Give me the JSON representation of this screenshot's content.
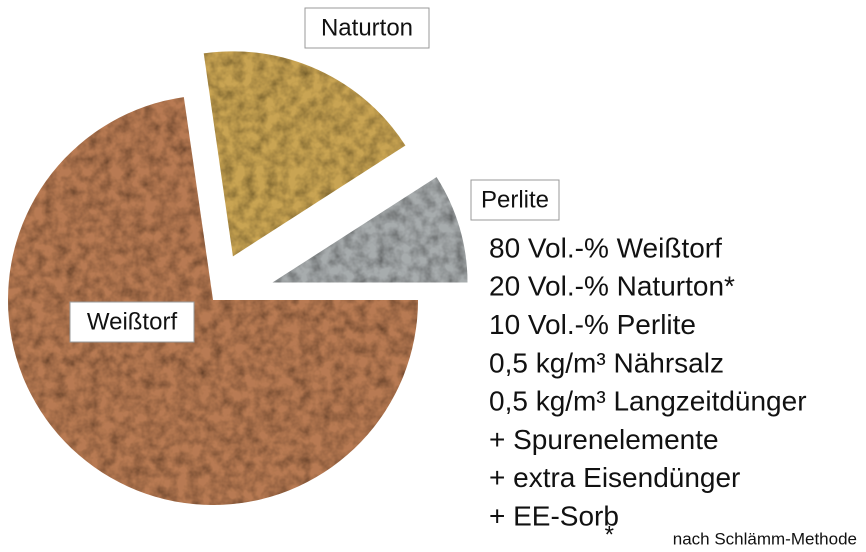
{
  "chart_data": {
    "type": "pie",
    "categories": [
      "Weißtorf",
      "Naturton",
      "Perlite"
    ],
    "values": [
      80,
      20,
      10
    ],
    "colors": [
      "#b87a52",
      "#c9a452",
      "#a7acad"
    ],
    "annotations": [
      "80 Vol.-% Weißtorf",
      "20 Vol.-% Naturton*",
      "10 Vol.-% Perlite",
      "0,5 kg/m³ Nährsalz",
      "0,5 kg/m³ Langzeitdünger",
      "+ Spurenelemente",
      "+ extra Eisendünger",
      "+ EE-Sorb"
    ],
    "footnote_mark": "*",
    "footnote": "nach Schlämm-Methode"
  }
}
